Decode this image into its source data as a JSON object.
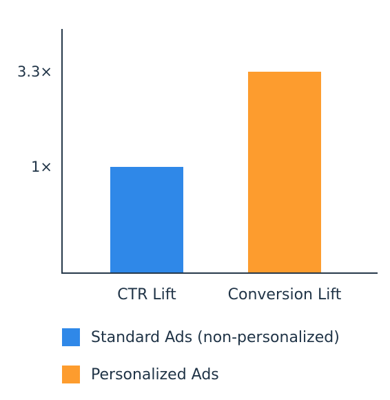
{
  "chart_data": {
    "type": "bar",
    "categories": [
      "CTR Lift",
      "Conversion Lift"
    ],
    "series": [
      {
        "name": "Standard Ads (non-personalized)",
        "color": "#2f88e8",
        "values": [
          1,
          null
        ]
      },
      {
        "name": "Personalized Ads",
        "color": "#fd9c2e",
        "values": [
          null,
          3.3
        ]
      }
    ],
    "yticks": [
      {
        "value": 1,
        "label": "1×"
      },
      {
        "value": 3.3,
        "label": "3.3×"
      }
    ],
    "axis_color": "#26384a",
    "grid": false,
    "legend_position": "bottom-left"
  }
}
